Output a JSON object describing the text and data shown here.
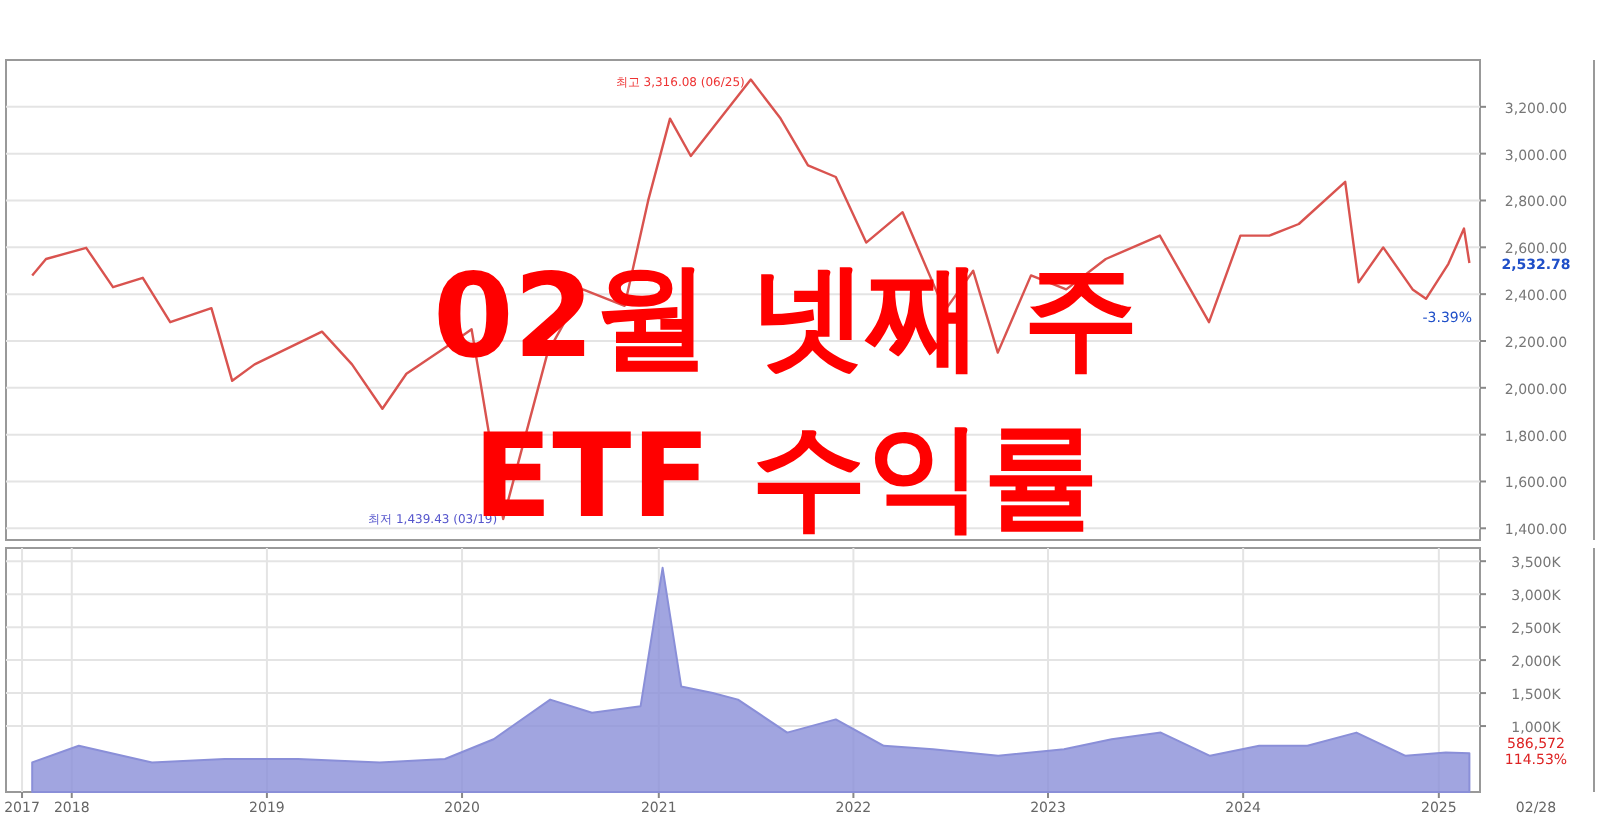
{
  "chart_data": [
    {
      "type": "line",
      "title": "02월 넷째 주 ETF 수익률",
      "xlim": [
        "2017-09-01",
        "2025-03-20"
      ],
      "ylim": [
        1350,
        3400
      ],
      "yticks": [
        {
          "value": 1400,
          "label": "1,400.00"
        },
        {
          "value": 1600,
          "label": "1,600.00"
        },
        {
          "value": 1800,
          "label": "1,800.00"
        },
        {
          "value": 2000,
          "label": "2,000.00"
        },
        {
          "value": 2200,
          "label": "2,200.00"
        },
        {
          "value": 2400,
          "label": "2,400.00"
        },
        {
          "value": 2600,
          "label": "2,600.00"
        },
        {
          "value": 2800,
          "label": "2,800.00"
        },
        {
          "value": 3000,
          "label": "3,000.00"
        },
        {
          "value": 3200,
          "label": "3,200.00"
        }
      ],
      "grid": true,
      "tick_labels": "y",
      "series": [
        {
          "color": "#d9534f",
          "x": [
            "2017-10-20",
            "2017-11-15",
            "2018-01-29",
            "2018-03-20",
            "2018-05-15",
            "2018-07-05",
            "2018-09-20",
            "2018-10-29",
            "2018-12-10",
            "2019-04-15",
            "2019-06-10",
            "2019-08-06",
            "2019-09-20",
            "2019-12-20",
            "2020-01-20",
            "2020-03-19",
            "2020-06-10",
            "2020-08-15",
            "2020-11-01",
            "2020-12-15",
            "2021-01-25",
            "2021-03-05",
            "2021-06-25",
            "2021-08-20",
            "2021-10-10",
            "2021-12-01",
            "2022-01-27",
            "2022-04-05",
            "2022-06-23",
            "2022-08-15",
            "2022-09-30",
            "2022-12-01",
            "2023-02-05",
            "2023-04-20",
            "2023-07-30",
            "2023-10-30",
            "2023-12-28",
            "2024-02-20",
            "2024-04-15",
            "2024-07-11",
            "2024-08-05",
            "2024-09-20",
            "2024-11-14",
            "2024-12-09",
            "2025-01-20",
            "2025-02-18",
            "2025-02-28"
          ],
          "values": [
            2480,
            2550,
            2598,
            2430,
            2470,
            2280,
            2340,
            2030,
            2100,
            2240,
            2100,
            1910,
            2060,
            2200,
            2250,
            1439.43,
            2150,
            2420,
            2350,
            2800,
            3150,
            2990,
            3316.08,
            3150,
            2950,
            2900,
            2620,
            2750,
            2330,
            2500,
            2150,
            2480,
            2420,
            2550,
            2650,
            2280,
            2650,
            2650,
            2700,
            2880,
            2450,
            2600,
            2420,
            2380,
            2530,
            2680,
            2532.78
          ]
        }
      ],
      "annotations": [
        {
          "text": "최고 3,316.08 (06/25)",
          "x": "2021-06-25",
          "y": 3316.08
        },
        {
          "text": "최저 1,439.43 (03/19)",
          "x": "2020-03-19",
          "y": 1439.43
        },
        {
          "text": "2,532.78",
          "x": "2025-02-28",
          "y": 2532.78
        },
        "-3.39%"
      ]
    },
    {
      "type": "area",
      "xlim": [
        "2017-09-01",
        "2025-03-20"
      ],
      "ylim": [
        0,
        3700
      ],
      "yticks": [
        {
          "value": 1000,
          "label": "1,000K"
        },
        {
          "value": 1500,
          "label": "1,500K"
        },
        {
          "value": 2000,
          "label": "2,000K"
        },
        {
          "value": 2500,
          "label": "2,500K"
        },
        {
          "value": 3000,
          "label": "3,000K"
        },
        {
          "value": 3500,
          "label": "3,500K"
        }
      ],
      "xticks": [
        {
          "value": "2017-10-01",
          "label": "2017"
        },
        {
          "value": "2018-01-02",
          "label": "2018"
        },
        {
          "value": "2019-01-02",
          "label": "2019"
        },
        {
          "value": "2020-01-02",
          "label": "2020"
        },
        {
          "value": "2021-01-04",
          "label": "2021"
        },
        {
          "value": "2022-01-03",
          "label": "2022"
        },
        {
          "value": "2023-01-02",
          "label": "2023"
        },
        {
          "value": "2024-01-02",
          "label": "2024"
        },
        {
          "value": "2025-01-02",
          "label": "2025"
        }
      ],
      "grid": true,
      "series": [
        {
          "color": "#8a8fd8",
          "x": [
            "2017-10-20",
            "2018-01-15",
            "2018-06-01",
            "2018-10-15",
            "2019-03-01",
            "2019-08-01",
            "2019-12-01",
            "2020-03-01",
            "2020-06-15",
            "2020-09-01",
            "2020-12-01",
            "2021-01-11",
            "2021-02-15",
            "2021-04-15",
            "2021-06-01",
            "2021-09-01",
            "2021-12-01",
            "2022-03-01",
            "2022-06-01",
            "2022-10-01",
            "2023-02-01",
            "2023-05-01",
            "2023-08-01",
            "2023-11-01",
            "2024-02-01",
            "2024-05-01",
            "2024-08-01",
            "2024-11-01",
            "2025-01-15",
            "2025-02-28"
          ],
          "values": [
            450,
            700,
            450,
            500,
            500,
            450,
            500,
            800,
            1400,
            1200,
            1300,
            3400,
            1600,
            1500,
            1400,
            900,
            1100,
            700,
            650,
            550,
            650,
            800,
            900,
            550,
            700,
            700,
            900,
            550,
            600,
            587
          ]
        }
      ],
      "annotations": [
        "586,572",
        "114.53%",
        "02/28"
      ]
    }
  ]
}
